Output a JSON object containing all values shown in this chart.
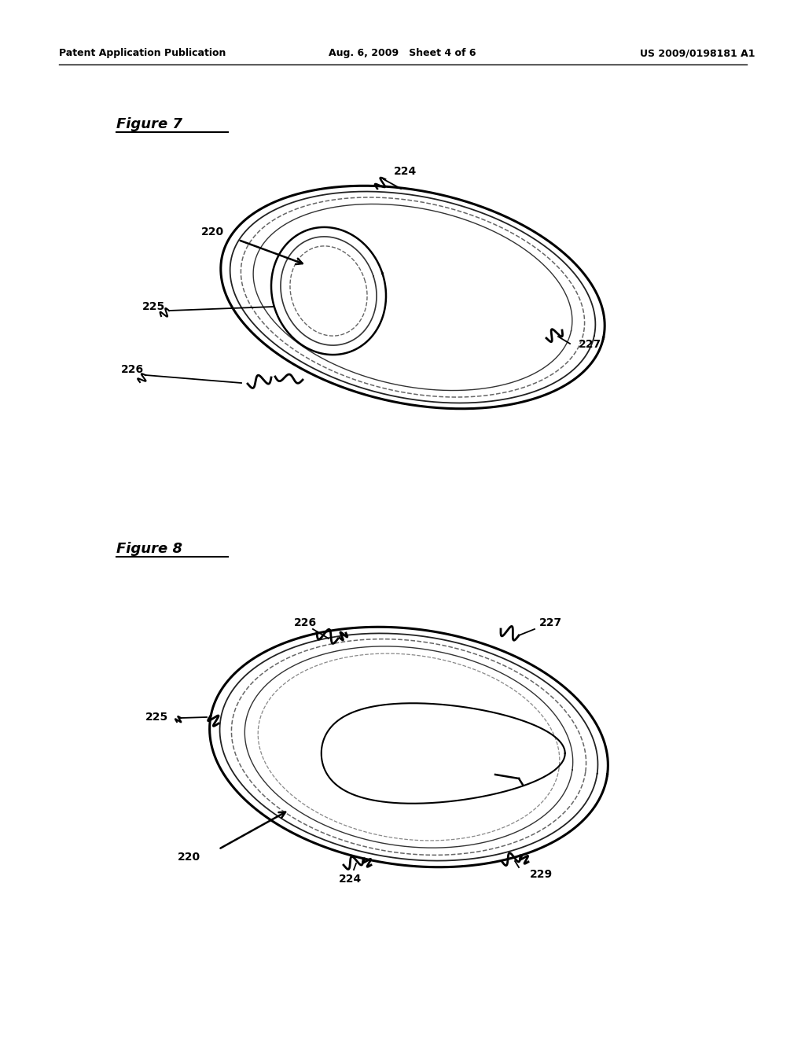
{
  "bg_color": "#ffffff",
  "header_left": "Patent Application Publication",
  "header_center": "Aug. 6, 2009   Sheet 4 of 6",
  "header_right": "US 2009/0198181 A1",
  "fig7_title": "Figure 7",
  "fig8_title": "Figure 8",
  "line_color": "#000000",
  "dash_color": "#888888",
  "text_color": "#000000",
  "lw_outer": 1.8,
  "lw_inner": 1.2,
  "lw_dash": 1.0,
  "fontsize_label": 10,
  "fontsize_title": 13,
  "fontsize_header": 9
}
